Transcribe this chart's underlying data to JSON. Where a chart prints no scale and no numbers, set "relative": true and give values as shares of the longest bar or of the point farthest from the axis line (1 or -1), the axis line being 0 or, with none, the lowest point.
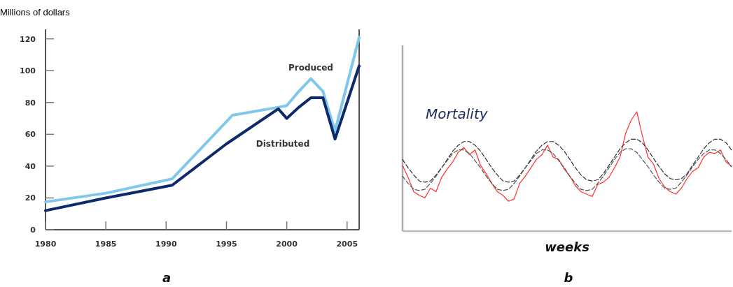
{
  "chart_data": [
    {
      "type": "line",
      "ylabel": "Millions of dollars",
      "annotations": [
        "a"
      ],
      "xlim": [
        1980,
        2006
      ],
      "ylim": [
        0,
        126
      ],
      "xticks": [
        1980,
        1985,
        1990,
        1995,
        2000,
        2005
      ],
      "yticks": [
        0,
        20,
        40,
        60,
        80,
        100,
        120
      ],
      "series": [
        {
          "name": "Produced",
          "color": "#7fc8ec",
          "x": [
            1980,
            1985,
            1990.5,
            1995.5,
            1999.3,
            2000,
            2001,
            2002,
            2003,
            2004,
            2006
          ],
          "values": [
            17.5,
            23,
            32,
            72,
            77,
            78,
            87,
            95,
            87,
            62,
            121
          ]
        },
        {
          "name": "Distributed",
          "color": "#0d2a6b",
          "x": [
            1980,
            1985,
            1990.5,
            1995,
            1999.3,
            2000,
            2001,
            2002,
            2003,
            2004,
            2006
          ],
          "values": [
            12,
            20,
            28,
            54,
            76,
            70,
            77,
            83,
            83,
            57,
            103
          ]
        }
      ]
    },
    {
      "type": "line",
      "relative": true,
      "ylabel": "Mortality",
      "xlabel": "weeks",
      "annotations": [
        "b"
      ],
      "categories": [
        null,
        null,
        null,
        null,
        null,
        null,
        null,
        null,
        null,
        null,
        null,
        null,
        null,
        null,
        null,
        null,
        null,
        null,
        null,
        null,
        null,
        null,
        null,
        null,
        null,
        null,
        null,
        null,
        null,
        null,
        null,
        null,
        null,
        null,
        null,
        null,
        null,
        null,
        null,
        null,
        null,
        null,
        null,
        null,
        null,
        null,
        null,
        null,
        null,
        null,
        null,
        null,
        null,
        null,
        null,
        null,
        null,
        null,
        null,
        null
      ],
      "series": [
        {
          "color": "#ff3030",
          "line_style": "solid",
          "values": [
            0.55,
            0.45,
            0.33,
            0.3,
            0.28,
            0.36,
            0.33,
            0.45,
            0.52,
            0.58,
            0.66,
            0.7,
            0.64,
            0.68,
            0.55,
            0.48,
            0.4,
            0.33,
            0.3,
            0.25,
            0.27,
            0.4,
            0.46,
            0.53,
            0.6,
            0.64,
            0.72,
            0.62,
            0.6,
            0.52,
            0.46,
            0.38,
            0.33,
            0.31,
            0.29,
            0.39,
            0.41,
            0.45,
            0.53,
            0.62,
            0.82,
            0.93,
            1.0,
            0.8,
            0.62,
            0.56,
            0.44,
            0.37,
            0.33,
            0.31,
            0.36,
            0.44,
            0.5,
            0.53,
            0.62,
            0.66,
            0.65,
            0.68,
            0.58,
            0.54
          ]
        },
        {
          "color": "#333333",
          "line_style": "dashed",
          "values": [
            0.6,
            0.53,
            0.47,
            0.42,
            0.41,
            0.42,
            0.47,
            0.53,
            0.6,
            0.67,
            0.72,
            0.75,
            0.75,
            0.72,
            0.67,
            0.6,
            0.53,
            0.47,
            0.42,
            0.41,
            0.42,
            0.47,
            0.53,
            0.6,
            0.67,
            0.72,
            0.75,
            0.75,
            0.72,
            0.67,
            0.6,
            0.53,
            0.47,
            0.43,
            0.42,
            0.43,
            0.48,
            0.55,
            0.62,
            0.69,
            0.74,
            0.77,
            0.77,
            0.74,
            0.68,
            0.61,
            0.54,
            0.48,
            0.44,
            0.43,
            0.44,
            0.48,
            0.55,
            0.62,
            0.69,
            0.74,
            0.77,
            0.77,
            0.74,
            0.68
          ]
        },
        {
          "color": "#555555",
          "line_style": "dashed",
          "values": [
            0.46,
            0.4,
            0.35,
            0.34,
            0.35,
            0.4,
            0.46,
            0.53,
            0.59,
            0.65,
            0.68,
            0.68,
            0.65,
            0.59,
            0.53,
            0.46,
            0.4,
            0.35,
            0.34,
            0.35,
            0.4,
            0.46,
            0.53,
            0.59,
            0.65,
            0.68,
            0.68,
            0.65,
            0.59,
            0.53,
            0.46,
            0.4,
            0.35,
            0.34,
            0.35,
            0.4,
            0.46,
            0.53,
            0.6,
            0.66,
            0.69,
            0.69,
            0.66,
            0.6,
            0.54,
            0.47,
            0.41,
            0.36,
            0.35,
            0.36,
            0.41,
            0.47,
            0.54,
            0.6,
            0.65,
            0.68,
            0.68,
            0.65,
            0.6,
            0.54
          ]
        }
      ]
    }
  ]
}
